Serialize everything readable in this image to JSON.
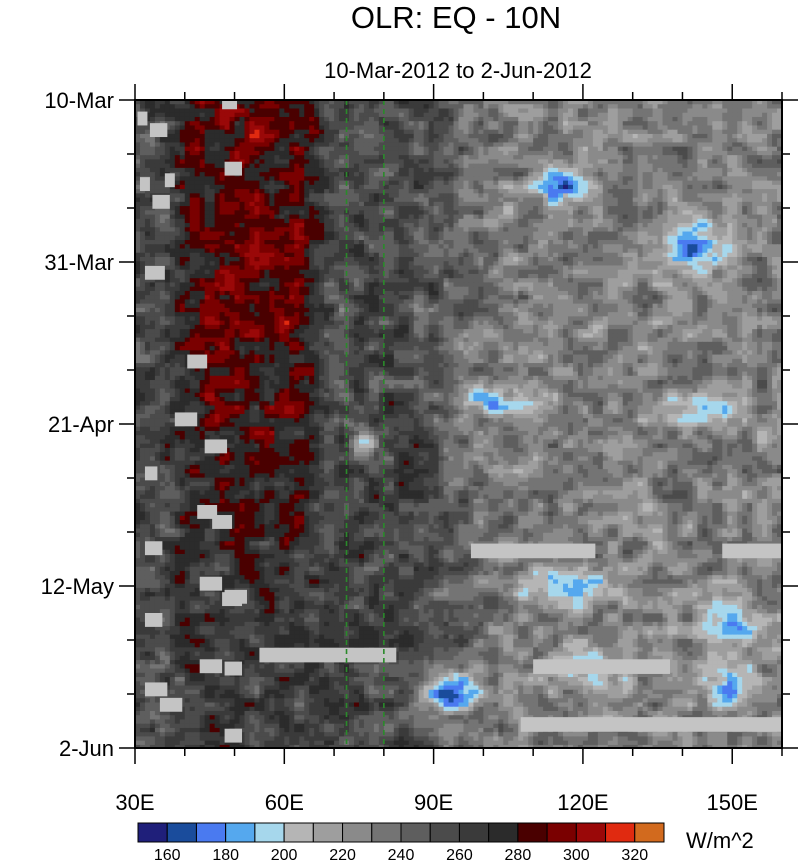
{
  "chart_data": {
    "type": "heatmap",
    "title": "OLR: EQ - 10N",
    "subtitle": "10-Mar-2012 to 2-Jun-2012",
    "xlabel": "",
    "ylabel": "",
    "x_ticks": [
      "30E",
      "60E",
      "90E",
      "120E",
      "150E"
    ],
    "x_tick_values": [
      30,
      60,
      90,
      120,
      150
    ],
    "xlim": [
      30,
      160
    ],
    "y_ticks": [
      "10-Mar",
      "31-Mar",
      "21-Apr",
      "12-May",
      "2-Jun"
    ],
    "y_tick_days": [
      0,
      21,
      42,
      63,
      84
    ],
    "ylim_days": [
      0,
      84
    ],
    "y_reversed": true,
    "reference_lines_lon": [
      72.5,
      80
    ],
    "reference_line_color": "#2a8a2a",
    "colorbar": {
      "units": "W/m^2",
      "levels": [
        160,
        170,
        180,
        190,
        200,
        210,
        220,
        230,
        240,
        250,
        260,
        270,
        280,
        290,
        300,
        310,
        320
      ],
      "labels": [
        "160",
        "180",
        "200",
        "220",
        "240",
        "260",
        "280",
        "300",
        "320"
      ],
      "colors": [
        "#1f1f7a",
        "#1a4c9c",
        "#4a7af0",
        "#55a8ee",
        "#a6d7ec",
        "#b5b5b5",
        "#9e9e9e",
        "#8a8a8a",
        "#747474",
        "#5e5e5e",
        "#4b4b4b",
        "#3a3a3a",
        "#2b2b2b",
        "#4a0000",
        "#7a0000",
        "#9a0808",
        "#e02a10",
        "#d26a1e"
      ]
    },
    "missing_color": "#c4c4c4"
  }
}
